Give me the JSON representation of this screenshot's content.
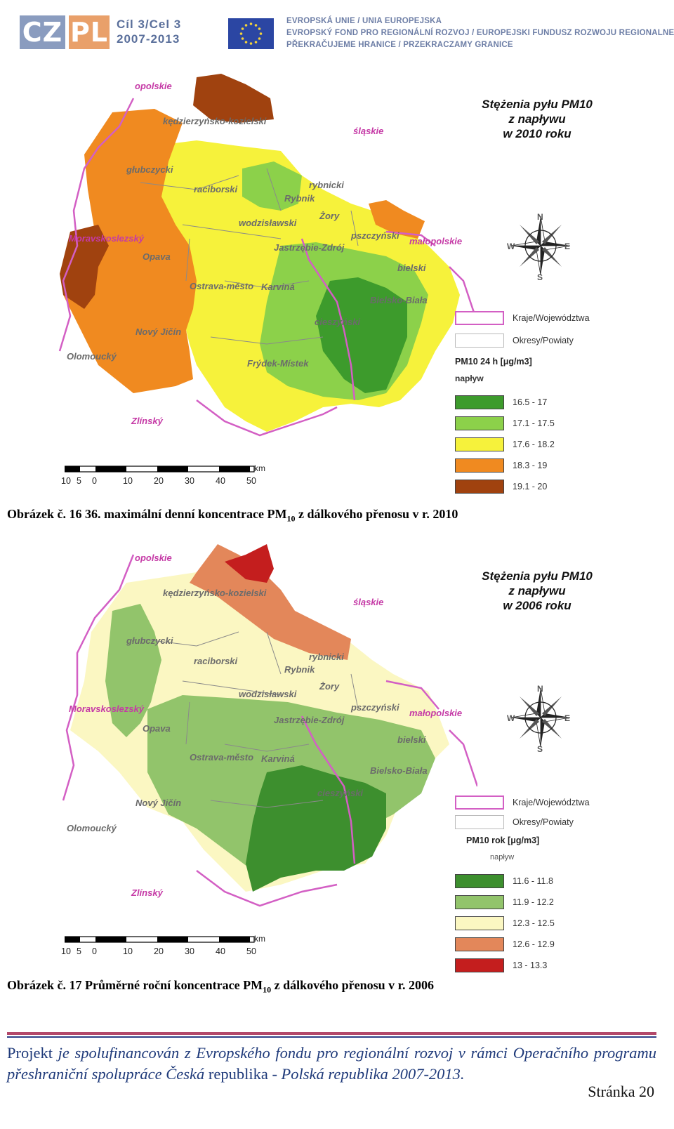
{
  "header": {
    "logo_cz": "CZ",
    "logo_pl": "PL",
    "logo_goal_line1": "Cíl 3/Cel 3",
    "logo_goal_line2": "2007-2013",
    "eu_line1": "EVROPSKÁ UNIE / UNIA EUROPEJSKA",
    "eu_line2": "EVROPSKÝ FOND PRO REGIONÁLNÍ ROZVOJ / EUROPEJSKI FUNDUSZ ROZWOJU REGIONALNEGO",
    "eu_line3": "PŘEKRAČUJEME HRANICE / PRZEKRACZAMY GRANICE"
  },
  "maps": [
    {
      "title_line1": "Stężenia pyłu PM10",
      "title_line2": "z napływu",
      "title_line3": "w 2010 roku",
      "legend_boundary_regions": "Kraje/Województwa",
      "legend_boundary_districts": "Okresy/Powiaty",
      "legend_title": "PM10 24 h [μg/m3]",
      "legend_subtitle": "napływ",
      "classes": [
        {
          "range": "16.5 - 17",
          "color": "#3d9b2c"
        },
        {
          "range": "17.1 - 17.5",
          "color": "#8cd14a"
        },
        {
          "range": "17.6 - 18.2",
          "color": "#f6f23b"
        },
        {
          "range": "18.3 - 19",
          "color": "#f08a20"
        },
        {
          "range": "19.1 - 20",
          "color": "#a0420f"
        }
      ],
      "scale_unit": "km",
      "scale_ticks": [
        "10",
        "5",
        "0",
        "10",
        "20",
        "30",
        "40",
        "50"
      ],
      "compass": {
        "n": "N",
        "s": "S",
        "e": "E",
        "w": "W"
      },
      "labels": {
        "opolskie": "opolskie",
        "slaskie": "śląskie",
        "kedzierzynsko": "kędzierzyńsko-kozielski",
        "glubczycki": "głubczycki",
        "raciborski": "raciborski",
        "rybnicki": "rybnicki",
        "rybnik": "Rybnik",
        "zory": "Żory",
        "wodzislawski": "wodzisławski",
        "pszczynski": "pszczyński",
        "malopolskie": "małopolskie",
        "moravskoslezsky": "Moravskoslezský",
        "jastrzebie": "Jastrzębie-Zdrój",
        "opava": "Opava",
        "bielski": "bielski",
        "ostrava": "Ostrava-město",
        "karvina": "Karviná",
        "bielsko": "Bielsko-Biała",
        "cieszynski": "cieszyński",
        "novy_jicin": "Nový Jičín",
        "olomoucky": "Olomoucký",
        "frydek": "Frýdek-Místek",
        "zlinsky": "Zlínský"
      }
    },
    {
      "title_line1": "Stężenia pyłu PM10",
      "title_line2": "z napływu",
      "title_line3": "w 2006 roku",
      "legend_boundary_regions": "Kraje/Województwa",
      "legend_boundary_districts": "Okresy/Powiaty",
      "legend_title": "PM10 rok [μg/m3]",
      "legend_subtitle": "napływ",
      "classes": [
        {
          "range": "11.6 - 11.8",
          "color": "#3d8f2e"
        },
        {
          "range": "11.9 - 12.2",
          "color": "#92c46b"
        },
        {
          "range": "12.3 - 12.5",
          "color": "#fbf7c2"
        },
        {
          "range": "12.6 - 12.9",
          "color": "#e3875a"
        },
        {
          "range": "13 - 13.3",
          "color": "#c41e1e"
        }
      ],
      "scale_unit": "km",
      "scale_ticks": [
        "10",
        "5",
        "0",
        "10",
        "20",
        "30",
        "40",
        "50"
      ],
      "compass": {
        "n": "N",
        "s": "S",
        "e": "E",
        "w": "W"
      },
      "labels": {
        "opolskie": "opolskie",
        "slaskie": "śląskie",
        "kedzierzynsko": "kędzierzyńsko-kozielski",
        "glubczycki": "głubczycki",
        "raciborski": "raciborski",
        "rybnicki": "rybnicki",
        "rybnik": "Rybnik",
        "zory": "Żory",
        "wodzislawski": "wodzisławski",
        "pszczynski": "pszczyński",
        "malopolskie": "małopolskie",
        "moravskoslezsky": "Moravskoslezský",
        "jastrzebie": "Jastrzębie-Zdrój",
        "opava": "Opava",
        "bielski": "bielski",
        "ostrava": "Ostrava-město",
        "karvina": "Karviná",
        "bielsko": "Bielsko-Biała",
        "cieszynski": "cieszyński",
        "novy_jicin": "Nový Jičín",
        "olomoucky": "Olomoucký",
        "zlinsky": "Zlínský"
      }
    }
  ],
  "captions": {
    "fig1_before": "Obrázek č. 16 36. maximální denní koncentrace PM",
    "fig1_sub": "10",
    "fig1_after": " z dálkového přenosu v r. 2010",
    "fig2_before": "Obrázek č. 17 Průměrné roční koncentrace PM",
    "fig2_sub": "10",
    "fig2_after": " z dálkového přenosu v r. 2006"
  },
  "footer": {
    "w1": "Projekt",
    "w2": " je spolufinancován z Evropského fondu pro regionální rozvoj v rámci Operačního programu přeshraniční spolupráce Česká ",
    "w3": "republika",
    "w4": " - Polská republika 2007-2013.",
    "page": "Stránka 20"
  }
}
